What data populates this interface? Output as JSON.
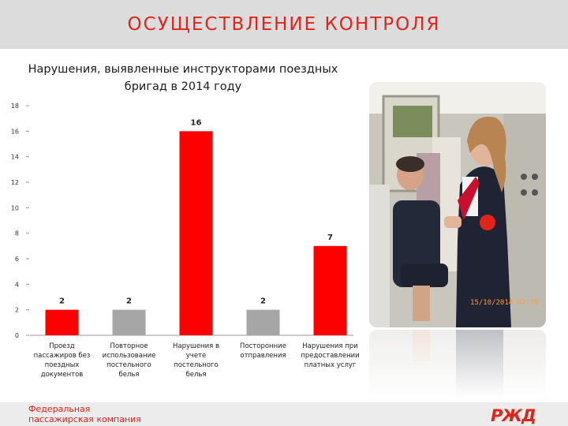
{
  "header": {
    "title": "ОСУЩЕСТВЛЕНИЕ КОНТРОЛЯ"
  },
  "footer": {
    "company_line1": "Федеральная",
    "company_line2": "пассажирская компания",
    "logo_text": "РЖД"
  },
  "photo": {
    "timestamp": "15/10/2014 02:28"
  },
  "colors": {
    "accent": "#e2231a",
    "bar_red": "#ff0000",
    "bar_gray": "#a6a6a6",
    "header_bg": "#dcdcdc"
  },
  "chart_data": {
    "type": "bar",
    "title": "Нарушения, выявленные инструкторами поездных бригад в 2014 году",
    "categories": [
      "Проезд пассажиров без поездных документов",
      "Повторное использование постельного белья",
      "Нарушения в учете постельного белья",
      "Посторонние отправления",
      "Нарушения при предоставлении платных услуг"
    ],
    "category_lines": [
      [
        "Проезд",
        "пассажиров без",
        "поездных",
        "документов"
      ],
      [
        "Повторное",
        "использование",
        "постельного",
        "белья"
      ],
      [
        "Нарушения в",
        "учете",
        "постельного",
        "белья"
      ],
      [
        "Посторонние",
        "отправления"
      ],
      [
        "Нарушения при",
        "предоставлении",
        "платных услуг"
      ]
    ],
    "values": [
      2,
      2,
      16,
      2,
      7
    ],
    "bar_colors": [
      "#ff0000",
      "#a6a6a6",
      "#ff0000",
      "#a6a6a6",
      "#ff0000"
    ],
    "data_labels": [
      "2",
      "2",
      "16",
      "2",
      "7"
    ],
    "yticks": [
      "0",
      "2",
      "4",
      "6",
      "8",
      "10",
      "12",
      "14",
      "16",
      "18"
    ],
    "ylim": [
      0,
      18
    ],
    "grid": false,
    "legend": "none"
  }
}
